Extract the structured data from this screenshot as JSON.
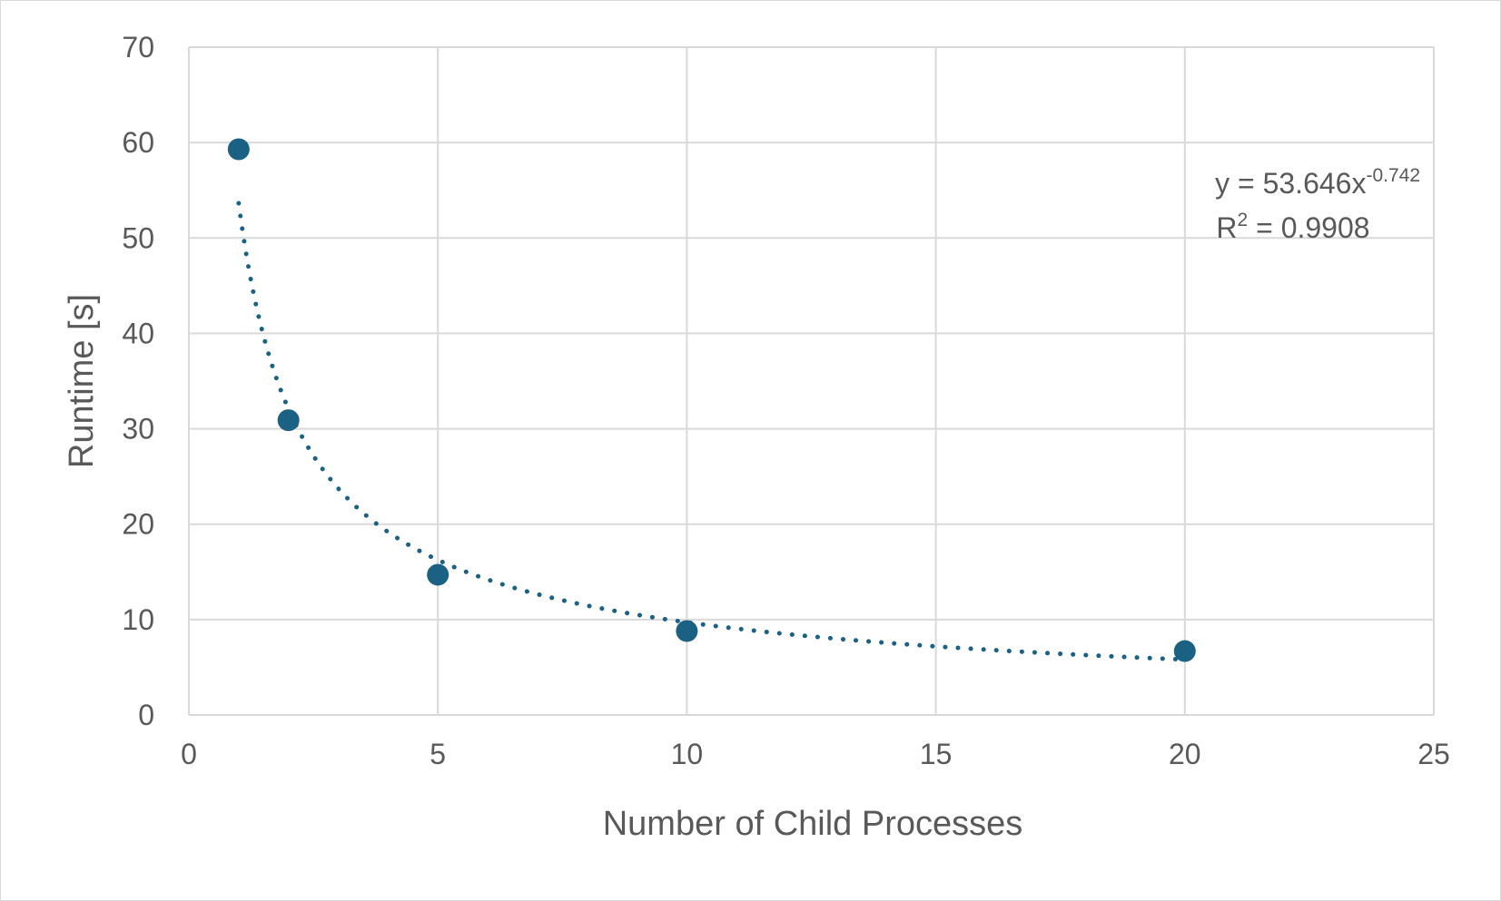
{
  "chart_data": {
    "type": "scatter",
    "title": "",
    "xlabel": "Number of Child Processes",
    "ylabel": "Runtime [s]",
    "xlim": [
      0,
      25
    ],
    "ylim": [
      0,
      70
    ],
    "x_ticks": [
      0,
      5,
      10,
      15,
      20,
      25
    ],
    "x_tick_labels": [
      "0",
      "5",
      "10",
      "15",
      "20",
      "25"
    ],
    "y_ticks": [
      0,
      10,
      20,
      30,
      40,
      50,
      60,
      70
    ],
    "y_tick_labels": [
      "0",
      "10",
      "20",
      "30",
      "40",
      "50",
      "60",
      "70"
    ],
    "grid": true,
    "legend": "none",
    "series": [
      {
        "x": [
          1,
          2,
          5,
          10,
          20
        ],
        "y": [
          59.3,
          30.9,
          14.7,
          8.8,
          6.7
        ],
        "color": "#1b6184"
      }
    ],
    "trendline": {
      "kind": "power",
      "a": 53.646,
      "b": -0.742,
      "x_range": [
        1,
        20
      ],
      "style": "dotted",
      "color": "#1b6184",
      "equation_main": "y = 53.646x",
      "equation_exp": "-0.742",
      "r2_prefix": "R",
      "r2_sup": "2",
      "r2_value": " = 0.9908"
    }
  }
}
